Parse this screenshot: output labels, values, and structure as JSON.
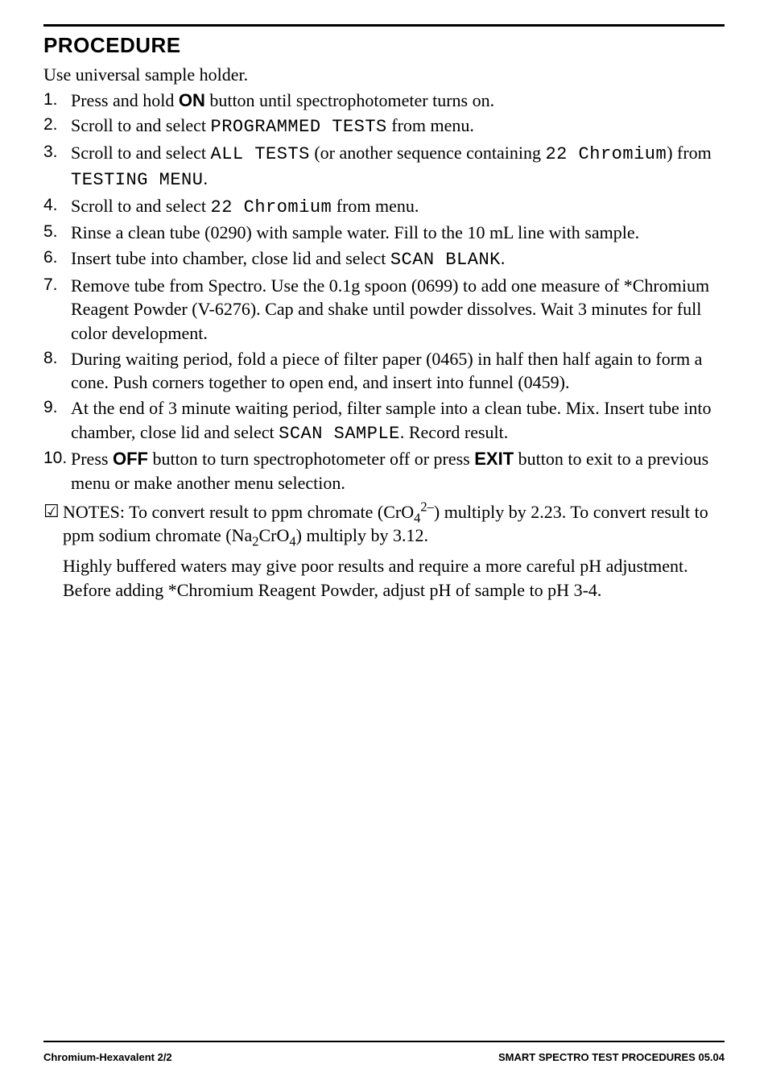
{
  "heading": "PROCEDURE",
  "intro": "Use universal sample holder.",
  "steps": {
    "nums": [
      "1.",
      "2.",
      "3.",
      "4.",
      "5.",
      "6.",
      "7.",
      "8.",
      "9.",
      "10."
    ],
    "s1": {
      "a": "Press and hold ",
      "on": "ON",
      "b": " button until spectrophotometer turns on."
    },
    "s2": {
      "a": "Scroll to and select ",
      "m": "PROGRAMMED TESTS",
      "b": " from menu."
    },
    "s3": {
      "a": "Scroll to and select ",
      "m1": "ALL TESTS",
      "b": " (or another sequence containing ",
      "m2": "22 Chromium",
      "c": ") from ",
      "m3": "TESTING MENU",
      "d": "."
    },
    "s4": {
      "a": "Scroll to and select ",
      "m": "22 Chromium",
      "b": " from menu."
    },
    "s5": "Rinse a clean tube (0290) with sample water. Fill to the 10 mL line with sample.",
    "s6": {
      "a": "Insert tube into chamber, close lid and select ",
      "m": "SCAN BLANK",
      "b": "."
    },
    "s7": "Remove tube from Spectro. Use the 0.1g spoon (0699) to add one measure of *Chromium Reagent Powder (V-6276). Cap and shake until powder dissolves. Wait 3 minutes for full color development.",
    "s8": "During waiting period, fold a piece of filter paper (0465) in half then half again to form a cone. Push corners together to open end, and insert into funnel (0459).",
    "s9": {
      "a": "At the end of 3 minute waiting period, filter sample into a clean tube. Mix. Insert tube into chamber, close lid and select ",
      "m": "SCAN SAMPLE",
      "b": ". Record result."
    },
    "s10": {
      "a": "Press ",
      "off": "OFF",
      "b": " button to turn spectrophotometer off or press ",
      "exit": "EXIT",
      "c": " button to exit to a previous menu or make another menu selection."
    }
  },
  "notes": {
    "check": "☑",
    "label": "NOTES:  ",
    "p1a": "To convert result to ppm chromate (CrO",
    "p1b": ") multiply by 2.23. To convert result to ppm sodium chromate (Na",
    "p1c": "CrO",
    "p1d": ") multiply by 3.12.",
    "sub4": "4",
    "sup2m": "2–",
    "sub2": "2",
    "p2": "Highly buffered waters may give poor results and require a more careful pH adjustment. Before adding *Chromium Reagent Powder, adjust pH of sample to pH 3-4."
  },
  "footer": {
    "left": "Chromium-Hexavalent 2/2",
    "right": "SMART SPECTRO TEST PROCEDURES  05.04"
  }
}
